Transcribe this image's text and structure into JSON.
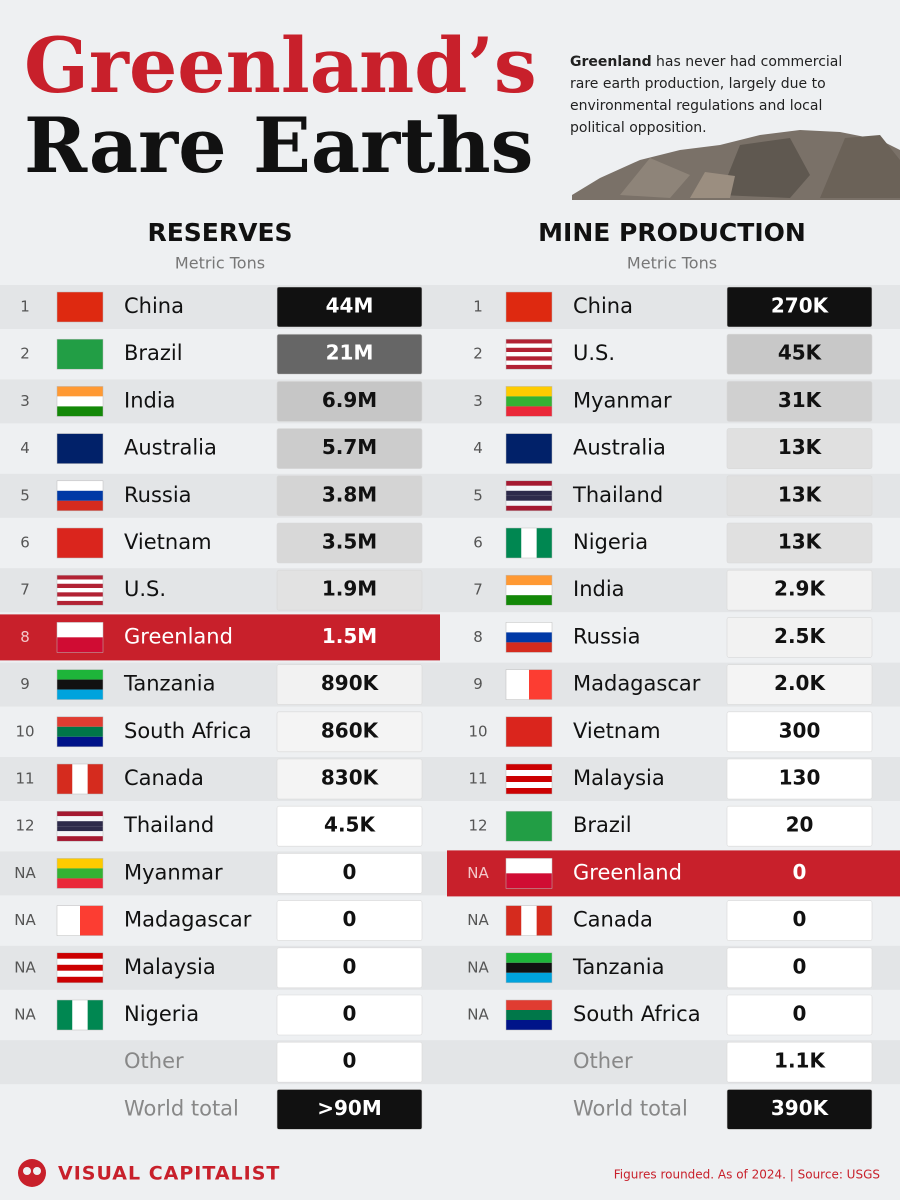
{
  "header": {
    "title_line1": "Greenland’s",
    "title_line2": "Rare Earths",
    "note_bold": "Greenland",
    "note_rest": "has never had commercial",
    "note_lines": [
      "rare earth production, largely due to",
      "environmental regulations and local",
      "political opposition."
    ]
  },
  "tables": [
    {
      "title": "RESERVES",
      "subtitle": "Metric Tons",
      "rows": [
        {
          "rank": "1",
          "country": "China",
          "value": "44M",
          "flag": {
            "h": [
              "#de2910"
            ]
          },
          "box": "#111111"
        },
        {
          "rank": "2",
          "country": "Brazil",
          "value": "21M",
          "flag": {
            "h": [
              "#229e45"
            ]
          },
          "box": "#666666"
        },
        {
          "rank": "3",
          "country": "India",
          "value": "6.9M",
          "flag": {
            "h": [
              "#ff9933",
              "#ffffff",
              "#138808"
            ]
          },
          "box": "#c6c6c6"
        },
        {
          "rank": "4",
          "country": "Australia",
          "value": "5.7M",
          "flag": {
            "h": [
              "#012169"
            ]
          },
          "box": "#cccccc"
        },
        {
          "rank": "5",
          "country": "Russia",
          "value": "3.8M",
          "flag": {
            "h": [
              "#ffffff",
              "#0039a6",
              "#d52b1e"
            ]
          },
          "box": "#d4d4d4"
        },
        {
          "rank": "6",
          "country": "Vietnam",
          "value": "3.5M",
          "flag": {
            "h": [
              "#da251d"
            ]
          },
          "box": "#d8d8d8"
        },
        {
          "rank": "7",
          "country": "U.S.",
          "value": "1.9M",
          "flag": {
            "h": [
              "#b22234",
              "#ffffff",
              "#b22234",
              "#ffffff",
              "#b22234",
              "#ffffff",
              "#b22234"
            ]
          },
          "box": "#e2e2e2"
        },
        {
          "rank": "8",
          "country": "Greenland",
          "value": "1.5M",
          "flag": {
            "h": [
              "#ffffff",
              "#d00c33"
            ]
          },
          "box": "#c8202b",
          "row": "#c8202b"
        },
        {
          "rank": "9",
          "country": "Tanzania",
          "value": "890K",
          "flag": {
            "h": [
              "#1eb53a",
              "#111111",
              "#00a3dd"
            ]
          },
          "box": "#f2f2f2"
        },
        {
          "rank": "10",
          "country": "South Africa",
          "value": "860K",
          "flag": {
            "h": [
              "#e03c31",
              "#007749",
              "#001489"
            ]
          },
          "box": "#f4f4f4"
        },
        {
          "rank": "11",
          "country": "Canada",
          "value": "830K",
          "flag": {
            "v": [
              "#d52b1e",
              "#ffffff",
              "#d52b1e"
            ]
          },
          "box": "#f4f4f4"
        },
        {
          "rank": "12",
          "country": "Thailand",
          "value": "4.5K",
          "flag": {
            "h": [
              "#a51931",
              "#f4f5f8",
              "#2d2a4a",
              "#2d2a4a",
              "#f4f5f8",
              "#a51931"
            ]
          },
          "box": "#ffffff"
        },
        {
          "rank": "NA",
          "country": "Myanmar",
          "value": "0",
          "flag": {
            "h": [
              "#fecb00",
              "#34b233",
              "#ea2839"
            ]
          },
          "box": "#ffffff"
        },
        {
          "rank": "NA",
          "country": "Madagascar",
          "value": "0",
          "flag": {
            "v": [
              "#ffffff",
              "#fc3d32"
            ]
          },
          "box": "#ffffff"
        },
        {
          "rank": "NA",
          "country": "Malaysia",
          "value": "0",
          "flag": {
            "h": [
              "#cc0001",
              "#ffffff",
              "#cc0001",
              "#ffffff",
              "#cc0001"
            ]
          },
          "box": "#ffffff"
        },
        {
          "rank": "NA",
          "country": "Nigeria",
          "value": "0",
          "flag": {
            "v": [
              "#008751",
              "#ffffff",
              "#008751"
            ]
          },
          "box": "#ffffff"
        },
        {
          "country": "Other",
          "value": "0",
          "box": "#ffffff"
        },
        {
          "country": "World total",
          "value": ">90M",
          "box": "#111111"
        }
      ]
    },
    {
      "title": "MINE PRODUCTION",
      "subtitle": "Metric Tons",
      "rows": [
        {
          "rank": "1",
          "country": "China",
          "value": "270K",
          "flag": {
            "h": [
              "#de2910"
            ]
          },
          "box": "#111111"
        },
        {
          "rank": "2",
          "country": "U.S.",
          "value": "45K",
          "flag": {
            "h": [
              "#b22234",
              "#ffffff",
              "#b22234",
              "#ffffff",
              "#b22234",
              "#ffffff",
              "#b22234"
            ]
          },
          "box": "#c8c8c8"
        },
        {
          "rank": "3",
          "country": "Myanmar",
          "value": "31K",
          "flag": {
            "h": [
              "#fecb00",
              "#34b233",
              "#ea2839"
            ]
          },
          "box": "#d0d0d0"
        },
        {
          "rank": "4",
          "country": "Australia",
          "value": "13K",
          "flag": {
            "h": [
              "#012169"
            ]
          },
          "box": "#e0e0e0"
        },
        {
          "rank": "5",
          "country": "Thailand",
          "value": "13K",
          "flag": {
            "h": [
              "#a51931",
              "#f4f5f8",
              "#2d2a4a",
              "#2d2a4a",
              "#f4f5f8",
              "#a51931"
            ]
          },
          "box": "#e0e0e0"
        },
        {
          "rank": "6",
          "country": "Nigeria",
          "value": "13K",
          "flag": {
            "v": [
              "#008751",
              "#ffffff",
              "#008751"
            ]
          },
          "box": "#e0e0e0"
        },
        {
          "rank": "7",
          "country": "India",
          "value": "2.9K",
          "flag": {
            "h": [
              "#ff9933",
              "#ffffff",
              "#138808"
            ]
          },
          "box": "#f2f2f2"
        },
        {
          "rank": "8",
          "country": "Russia",
          "value": "2.5K",
          "flag": {
            "h": [
              "#ffffff",
              "#0039a6",
              "#d52b1e"
            ]
          },
          "box": "#f2f2f2"
        },
        {
          "rank": "9",
          "country": "Madagascar",
          "value": "2.0K",
          "flag": {
            "v": [
              "#ffffff",
              "#fc3d32"
            ]
          },
          "box": "#f4f4f4"
        },
        {
          "rank": "10",
          "country": "Vietnam",
          "value": "300",
          "flag": {
            "h": [
              "#da251d"
            ]
          },
          "box": "#ffffff"
        },
        {
          "rank": "11",
          "country": "Malaysia",
          "value": "130",
          "flag": {
            "h": [
              "#cc0001",
              "#ffffff",
              "#cc0001",
              "#ffffff",
              "#cc0001"
            ]
          },
          "box": "#ffffff"
        },
        {
          "rank": "12",
          "country": "Brazil",
          "value": "20",
          "flag": {
            "h": [
              "#229e45"
            ]
          },
          "box": "#ffffff"
        },
        {
          "rank": "NA",
          "country": "Greenland",
          "value": "0",
          "flag": {
            "h": [
              "#ffffff",
              "#d00c33"
            ]
          },
          "box": "#c8202b",
          "row": "#c8202b"
        },
        {
          "rank": "NA",
          "country": "Canada",
          "value": "0",
          "flag": {
            "v": [
              "#d52b1e",
              "#ffffff",
              "#d52b1e"
            ]
          },
          "box": "#ffffff"
        },
        {
          "rank": "NA",
          "country": "Tanzania",
          "value": "0",
          "flag": {
            "h": [
              "#1eb53a",
              "#111111",
              "#00a3dd"
            ]
          },
          "box": "#ffffff"
        },
        {
          "rank": "NA",
          "country": "South Africa",
          "value": "0",
          "flag": {
            "h": [
              "#e03c31",
              "#007749",
              "#001489"
            ]
          },
          "box": "#ffffff"
        },
        {
          "country": "Other",
          "value": "1.1K",
          "box": "#ffffff"
        },
        {
          "country": "World total",
          "value": "390K",
          "box": "#111111"
        }
      ]
    }
  ],
  "footer": {
    "brand": "VISUAL CAPITALIST",
    "source": "Figures rounded. As of 2024. | Source: USGS"
  }
}
